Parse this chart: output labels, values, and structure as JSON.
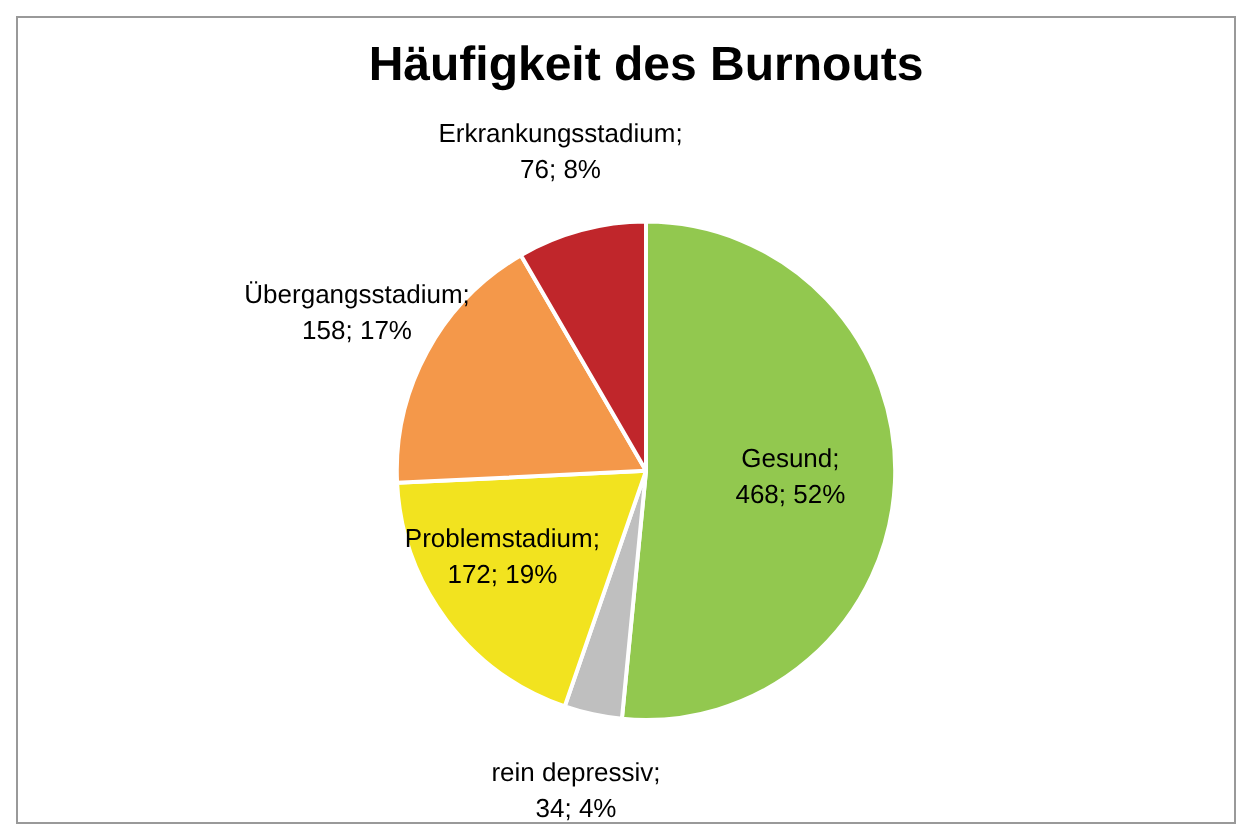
{
  "chart_data": {
    "type": "pie",
    "title": "Häufigkeit des Burnouts",
    "categories": [
      "Gesund",
      "rein depressiv",
      "Problemstadium",
      "Übergangsstadium",
      "Erkrankungsstadium"
    ],
    "values": [
      468,
      34,
      172,
      158,
      76
    ],
    "colors": [
      "#92c84f",
      "#bfbfbf",
      "#f2e31f",
      "#f4984a",
      "#c0262b"
    ],
    "value_labels": [
      "; 468; 52%",
      "; 34; 4%",
      "; 172; 19%",
      "; 158; 17%",
      "; 76; 8%"
    ],
    "legend": false
  }
}
